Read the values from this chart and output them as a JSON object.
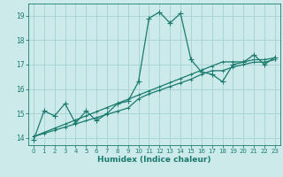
{
  "title": "",
  "xlabel": "Humidex (Indice chaleur)",
  "xlim": [
    -0.5,
    23.5
  ],
  "ylim": [
    13.7,
    19.5
  ],
  "yticks": [
    14,
    15,
    16,
    17,
    18,
    19
  ],
  "xticks": [
    0,
    1,
    2,
    3,
    4,
    5,
    6,
    7,
    8,
    9,
    10,
    11,
    12,
    13,
    14,
    15,
    16,
    17,
    18,
    19,
    20,
    21,
    22,
    23
  ],
  "background_color": "#cceaea",
  "grid_color": "#aad4d4",
  "line_color": "#1a7a6e",
  "line_width": 0.9,
  "marker": "+",
  "marker_size": 4,
  "series_main": [
    13.9,
    15.1,
    14.9,
    15.4,
    14.6,
    15.1,
    14.7,
    15.0,
    15.4,
    15.5,
    16.3,
    18.9,
    19.15,
    18.7,
    19.1,
    17.2,
    16.7,
    16.6,
    16.3,
    17.0,
    17.1,
    17.4,
    17.0,
    17.3
  ],
  "series_linear1": [
    14.05,
    14.22,
    14.39,
    14.56,
    14.73,
    14.9,
    15.07,
    15.24,
    15.41,
    15.58,
    15.75,
    15.92,
    16.09,
    16.26,
    16.43,
    16.6,
    16.77,
    16.94,
    17.11,
    17.11,
    17.11,
    17.2,
    17.2,
    17.28
  ],
  "series_linear2": [
    14.05,
    14.18,
    14.31,
    14.44,
    14.57,
    14.7,
    14.83,
    14.96,
    15.09,
    15.22,
    15.6,
    15.8,
    15.95,
    16.1,
    16.25,
    16.4,
    16.6,
    16.75,
    16.75,
    16.9,
    17.0,
    17.1,
    17.1,
    17.2
  ]
}
